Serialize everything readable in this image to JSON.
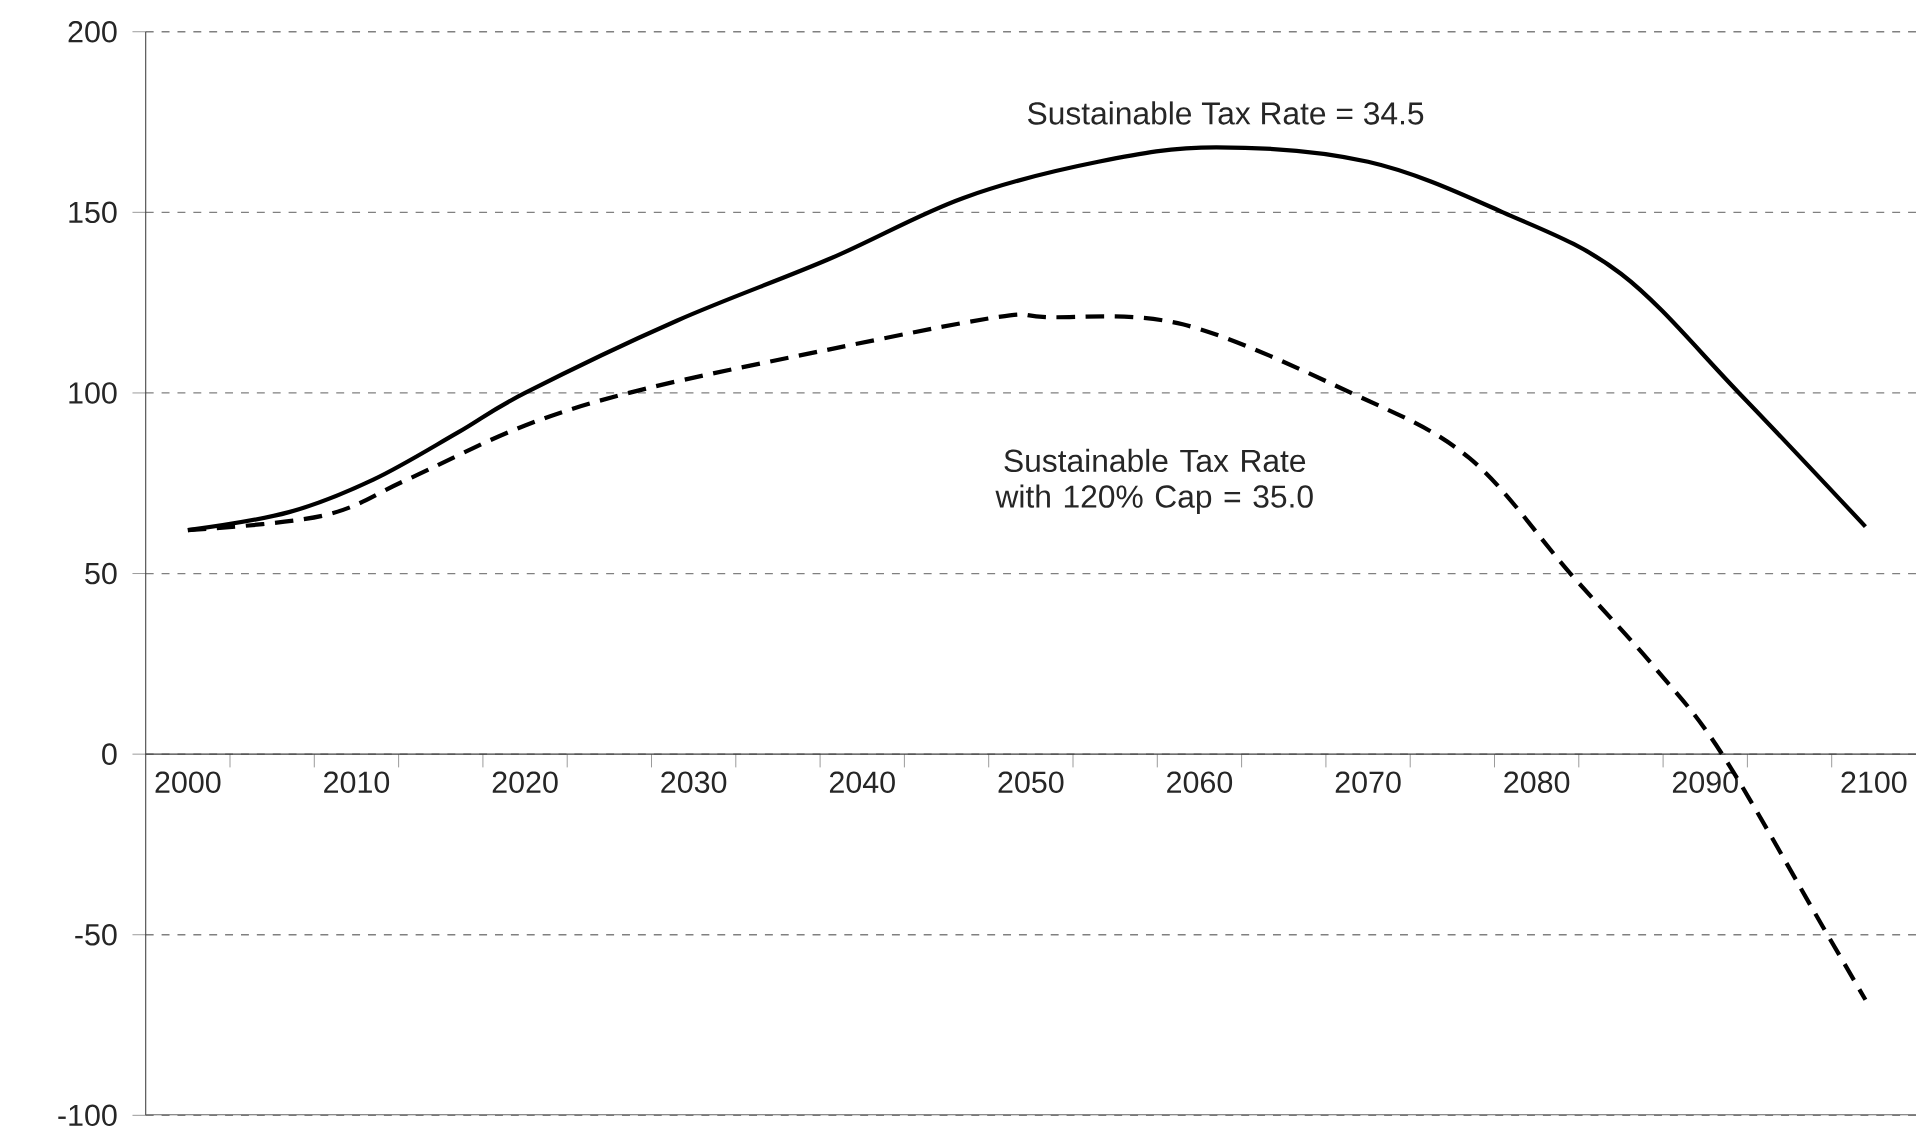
{
  "chart_data": {
    "type": "line",
    "xlim": [
      1997.5,
      2102.5
    ],
    "ylim": [
      -100,
      200
    ],
    "xticks": [
      2000,
      2010,
      2020,
      2030,
      2040,
      2050,
      2060,
      2070,
      2080,
      2090,
      2100,
      {
        "value": 1997.5,
        "label": null
      },
      {
        "value": 2002.5,
        "label": null
      },
      {
        "value": 2007.5,
        "label": null
      },
      {
        "value": 2012.5,
        "label": null
      },
      {
        "value": 2017.5,
        "label": null
      },
      {
        "value": 2022.5,
        "label": null
      },
      {
        "value": 2027.5,
        "label": null
      },
      {
        "value": 2032.5,
        "label": null
      },
      {
        "value": 2037.5,
        "label": null
      },
      {
        "value": 2042.5,
        "label": null
      },
      {
        "value": 2047.5,
        "label": null
      },
      {
        "value": 2052.5,
        "label": null
      },
      {
        "value": 2057.5,
        "label": null
      },
      {
        "value": 2062.5,
        "label": null
      },
      {
        "value": 2067.5,
        "label": null
      },
      {
        "value": 2072.5,
        "label": null
      },
      {
        "value": 2077.5,
        "label": null
      },
      {
        "value": 2082.5,
        "label": null
      },
      {
        "value": 2087.5,
        "label": null
      },
      {
        "value": 2092.5,
        "label": null
      },
      {
        "value": 2097.5,
        "label": null
      }
    ],
    "yticks": [
      -100,
      -50,
      0,
      50,
      100,
      150,
      200
    ],
    "grid": "y",
    "marker": "none",
    "series": [
      {
        "color": "#000000",
        "line_style": "solid",
        "x": [
          2000,
          2006,
          2011,
          2016,
          2020,
          2029,
          2038,
          2046,
          2054,
          2061,
          2070,
          2078,
          2085,
          2092,
          2099.5
        ],
        "values": [
          62,
          67,
          76,
          89,
          100,
          120,
          137,
          154,
          164,
          168,
          164,
          150,
          133,
          100,
          63
        ]
      },
      {
        "color": "#000000",
        "line_style": "dashed",
        "x": [
          2000,
          2008,
          2013,
          2020,
          2027,
          2038,
          2048,
          2051,
          2059,
          2069,
          2076,
          2082,
          2087,
          2091,
          2097,
          2099.5
        ],
        "values": [
          62,
          66,
          76,
          91,
          101,
          112,
          121,
          121,
          119,
          100,
          82,
          50,
          24,
          0,
          -48,
          -68
        ]
      }
    ],
    "annotations": [
      "Sustainable Tax Rate = 34.5",
      "Sustainable Tax Rate with 120% Cap = 35.0"
    ]
  }
}
